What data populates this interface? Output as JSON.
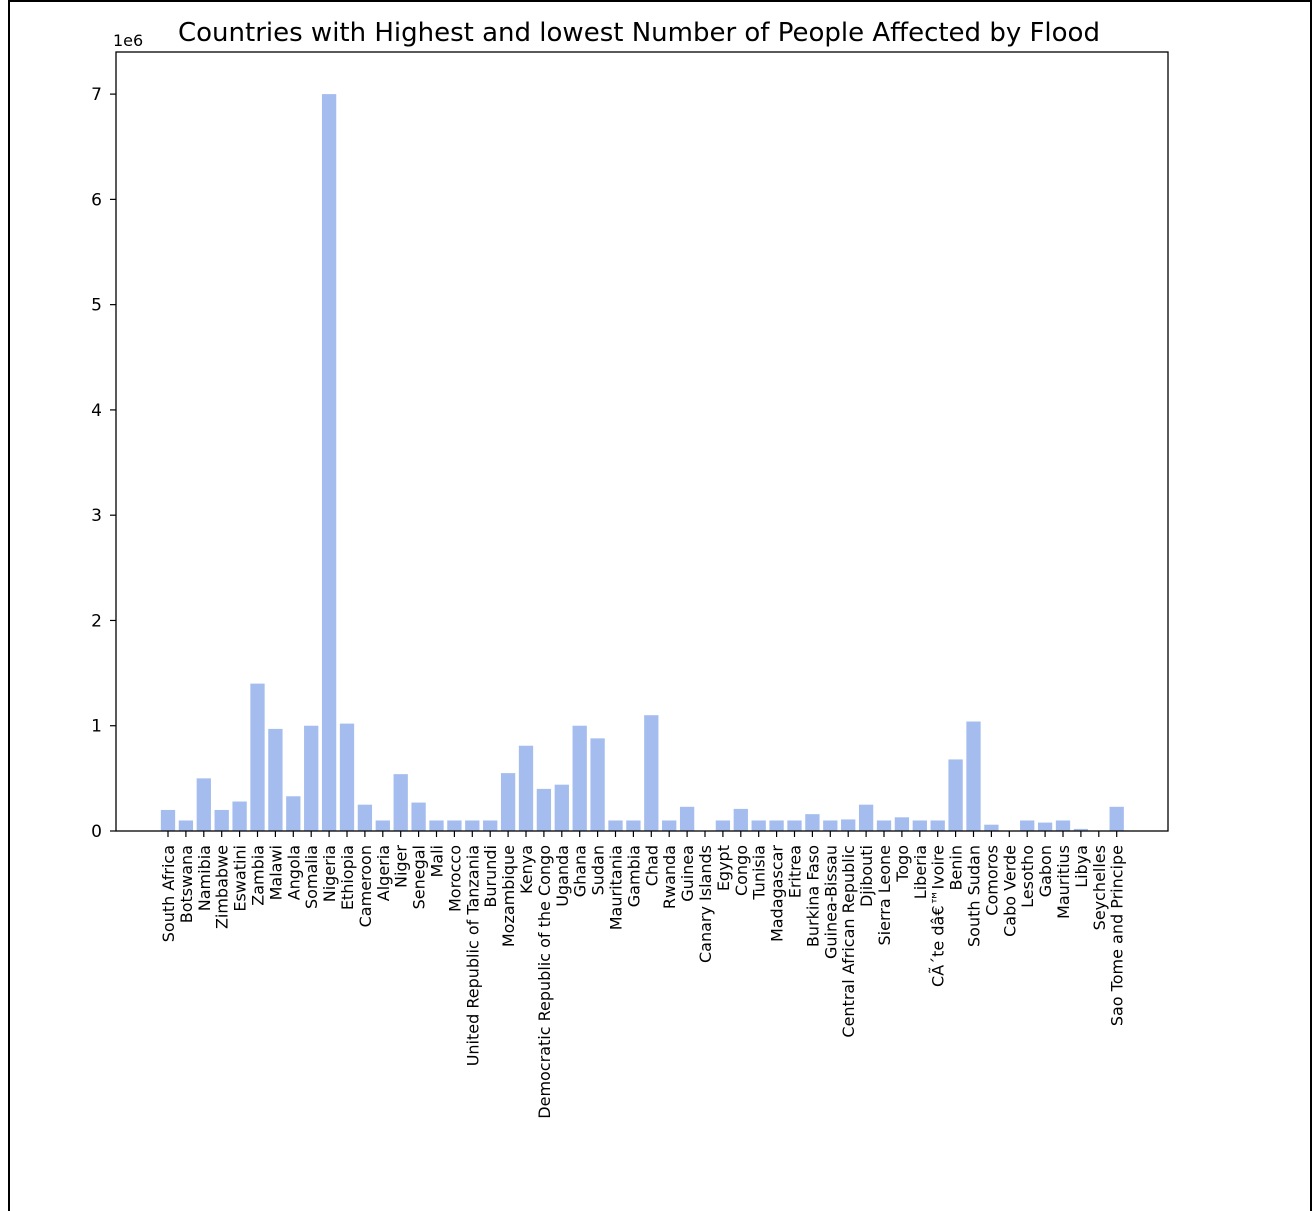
{
  "chart_data": {
    "type": "bar",
    "title": "Countries with Highest and lowest Number of People Affected by Flood",
    "xlabel": "",
    "ylabel": "",
    "y_offset_label": "1e6",
    "ylim": [
      0,
      7.4
    ],
    "y_ticks": [
      0,
      1,
      2,
      3,
      4,
      5,
      6,
      7
    ],
    "y_tick_labels": [
      "0",
      "1",
      "2",
      "3",
      "4",
      "5",
      "6",
      "7"
    ],
    "bar_color": "#a4bdee",
    "grid": false,
    "categories": [
      "South Africa",
      "Botswana",
      "Namibia",
      "Zimbabwe",
      "Eswatini",
      "Zambia",
      "Malawi",
      "Angola",
      "Somalia",
      "Nigeria",
      "Ethiopia",
      "Cameroon",
      "Algeria",
      "Niger",
      "Senegal",
      "Mali",
      "Morocco",
      "United Republic of Tanzania",
      "Burundi",
      "Mozambique",
      "Kenya",
      "Democratic Republic of the Congo",
      "Uganda",
      "Ghana",
      "Sudan",
      "Mauritania",
      "Gambia",
      "Chad",
      "Rwanda",
      "Guinea",
      "Canary Islands",
      "Egypt",
      "Congo",
      "Tunisia",
      "Madagascar",
      "Eritrea",
      "Burkina Faso",
      "Guinea-Bissau",
      "Central African Republic",
      "Djibouti",
      "Sierra Leone",
      "Togo",
      "Liberia",
      "CÃ´te dâ€™Ivoire",
      "Benin",
      "South Sudan",
      "Comoros",
      "Cabo Verde",
      "Lesotho",
      "Gabon",
      "Mauritius",
      "Libya",
      "Seychelles",
      "Sao Tome and Principe"
    ],
    "values": [
      0.2,
      0.1,
      0.5,
      0.2,
      0.28,
      1.4,
      0.97,
      0.33,
      1.0,
      7.0,
      1.02,
      0.25,
      0.1,
      0.54,
      0.27,
      0.1,
      0.1,
      0.1,
      0.1,
      0.55,
      0.81,
      0.4,
      0.44,
      1.0,
      0.88,
      0.1,
      0.1,
      1.1,
      0.1,
      0.23,
      0.0,
      0.1,
      0.21,
      0.1,
      0.1,
      0.1,
      0.16,
      0.1,
      0.11,
      0.25,
      0.1,
      0.13,
      0.1,
      0.1,
      0.68,
      1.04,
      0.06,
      0.0,
      0.1,
      0.08,
      0.1,
      0.02,
      0.0,
      0.23
    ]
  }
}
